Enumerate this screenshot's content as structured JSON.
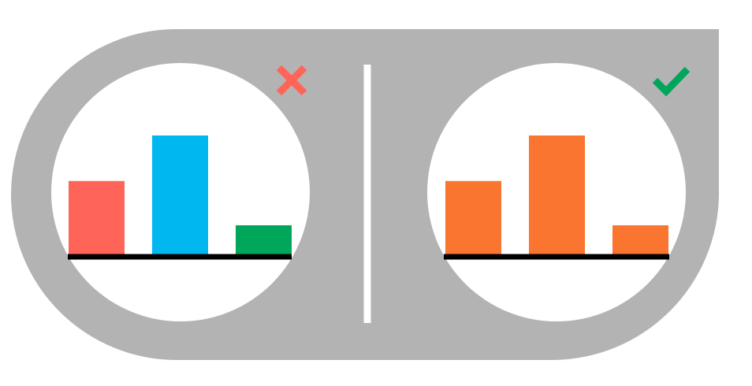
{
  "colors": {
    "background": "#ffffff",
    "frame": "#b3b3b3",
    "divider": "#ffffff",
    "baseline": "#000000",
    "wrong_mark": "#ff6458",
    "right_mark": "#00a65a"
  },
  "panels": [
    {
      "verdict": "wrong",
      "mark_icon": "cross-icon",
      "chart_data": {
        "type": "bar",
        "categories": [
          "",
          "",
          ""
        ],
        "values": [
          0.62,
          1.0,
          0.25
        ],
        "colors": [
          "#ff6458",
          "#00b8ef",
          "#00a65a"
        ]
      }
    },
    {
      "verdict": "right",
      "mark_icon": "check-icon",
      "chart_data": {
        "type": "bar",
        "categories": [
          "",
          "",
          ""
        ],
        "values": [
          0.62,
          1.0,
          0.25
        ],
        "colors": [
          "#fa7530",
          "#fa7530",
          "#fa7530"
        ]
      }
    }
  ]
}
